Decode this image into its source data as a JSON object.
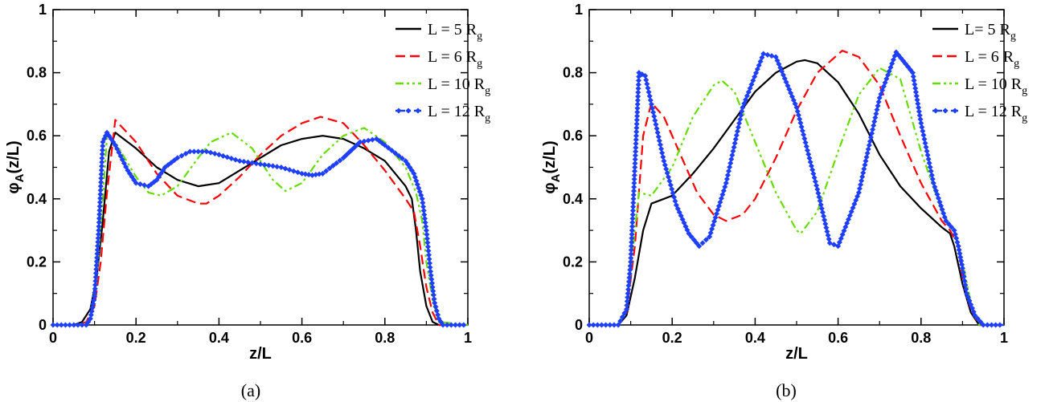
{
  "chart_data": [
    {
      "type": "line",
      "panel_label": "(a)",
      "xlabel": "z/L",
      "ylabel": "φA(z/L)",
      "ylabel_parts": {
        "symbol": "φ",
        "sub": "A",
        "rest": "(z/L)"
      },
      "xlim": [
        0,
        1
      ],
      "ylim": [
        0,
        1
      ],
      "xticks": [
        0,
        0.2,
        0.4,
        0.6,
        0.8,
        1
      ],
      "xtick_labels": [
        "0",
        "0.2",
        "0.4",
        "0.6",
        "0.8",
        "1"
      ],
      "yticks": [
        0,
        0.2,
        0.4,
        0.6,
        0.8,
        1
      ],
      "ytick_labels": [
        "0",
        "0.2",
        "0.4",
        "0.6",
        "0.8",
        "1"
      ],
      "grid": false,
      "legend_position": "top-right",
      "series": [
        {
          "name": "L = 5 Rg",
          "label_parts": {
            "main": "L = 5 R",
            "sub": "g"
          },
          "color": "#000000",
          "style": "solid",
          "marker": "none",
          "x": [
            0,
            0.05,
            0.07,
            0.09,
            0.105,
            0.12,
            0.135,
            0.15,
            0.2,
            0.25,
            0.3,
            0.35,
            0.4,
            0.45,
            0.5,
            0.55,
            0.6,
            0.65,
            0.7,
            0.75,
            0.8,
            0.85,
            0.865,
            0.875,
            0.885,
            0.9,
            0.915,
            0.93,
            1
          ],
          "y": [
            0,
            0,
            0.01,
            0.05,
            0.15,
            0.33,
            0.55,
            0.61,
            0.56,
            0.5,
            0.46,
            0.44,
            0.45,
            0.49,
            0.53,
            0.57,
            0.59,
            0.6,
            0.59,
            0.56,
            0.52,
            0.44,
            0.4,
            0.3,
            0.17,
            0.06,
            0.01,
            0,
            0
          ]
        },
        {
          "name": "L = 6 Rg",
          "label_parts": {
            "main": "L = 6 R",
            "sub": "g"
          },
          "color": "#ff0000",
          "style": "dash",
          "marker": "none",
          "x": [
            0,
            0.06,
            0.08,
            0.1,
            0.115,
            0.13,
            0.15,
            0.2,
            0.25,
            0.3,
            0.35,
            0.37,
            0.4,
            0.45,
            0.5,
            0.55,
            0.6,
            0.645,
            0.7,
            0.75,
            0.8,
            0.85,
            0.87,
            0.885,
            0.9,
            0.915,
            0.93,
            1
          ],
          "y": [
            0,
            0,
            0.01,
            0.06,
            0.2,
            0.42,
            0.65,
            0.58,
            0.48,
            0.41,
            0.385,
            0.385,
            0.41,
            0.47,
            0.54,
            0.6,
            0.64,
            0.66,
            0.64,
            0.57,
            0.49,
            0.4,
            0.36,
            0.25,
            0.12,
            0.04,
            0,
            0
          ]
        },
        {
          "name": "L = 10 Rg",
          "label_parts": {
            "main": "L = 10 R",
            "sub": "g"
          },
          "color": "#66dd00",
          "style": "dash-dot-dot",
          "marker": "none",
          "x": [
            0,
            0.07,
            0.09,
            0.105,
            0.12,
            0.13,
            0.15,
            0.2,
            0.23,
            0.26,
            0.3,
            0.35,
            0.38,
            0.43,
            0.48,
            0.53,
            0.56,
            0.6,
            0.65,
            0.7,
            0.75,
            0.8,
            0.85,
            0.875,
            0.89,
            0.9,
            0.915,
            0.93,
            1
          ],
          "y": [
            0,
            0,
            0.02,
            0.15,
            0.4,
            0.6,
            0.58,
            0.47,
            0.42,
            0.41,
            0.44,
            0.53,
            0.58,
            0.61,
            0.56,
            0.46,
            0.425,
            0.45,
            0.54,
            0.6,
            0.625,
            0.58,
            0.5,
            0.42,
            0.33,
            0.2,
            0.08,
            0.01,
            0
          ]
        },
        {
          "name": "L = 12 Rg",
          "label_parts": {
            "main": "L = 12 R",
            "sub": "g"
          },
          "color": "#1f3fff",
          "style": "dash-dot",
          "marker": "diamond",
          "x": [
            0,
            0.08,
            0.09,
            0.1,
            0.11,
            0.12,
            0.13,
            0.15,
            0.18,
            0.2,
            0.23,
            0.25,
            0.27,
            0.3,
            0.33,
            0.37,
            0.4,
            0.45,
            0.5,
            0.55,
            0.6,
            0.625,
            0.65,
            0.7,
            0.74,
            0.78,
            0.8,
            0.85,
            0.87,
            0.89,
            0.9,
            0.91,
            0.92,
            0.93,
            0.94,
            1
          ],
          "y": [
            0,
            0,
            0.02,
            0.09,
            0.3,
            0.58,
            0.61,
            0.57,
            0.49,
            0.45,
            0.44,
            0.46,
            0.5,
            0.53,
            0.55,
            0.55,
            0.54,
            0.52,
            0.51,
            0.5,
            0.48,
            0.475,
            0.48,
            0.53,
            0.58,
            0.59,
            0.57,
            0.52,
            0.48,
            0.4,
            0.3,
            0.17,
            0.07,
            0.02,
            0,
            0
          ]
        }
      ]
    },
    {
      "type": "line",
      "panel_label": "(b)",
      "xlabel": "z/L",
      "ylabel": "φA(z/L)",
      "ylabel_parts": {
        "symbol": "φ",
        "sub": "A",
        "rest": "(z/L)"
      },
      "xlim": [
        0,
        1
      ],
      "ylim": [
        0,
        1
      ],
      "xticks": [
        0,
        0.2,
        0.4,
        0.6,
        0.8,
        1
      ],
      "xtick_labels": [
        "0",
        "0.2",
        "0.4",
        "0.6",
        "0.8",
        "1"
      ],
      "yticks": [
        0,
        0.2,
        0.4,
        0.6,
        0.8,
        1
      ],
      "ytick_labels": [
        "0",
        "0.2",
        "0.4",
        "0.6",
        "0.8",
        "1"
      ],
      "grid": false,
      "legend_position": "top-right",
      "series": [
        {
          "name": "L= 5 Rg",
          "label_parts": {
            "main": "L= 5 R",
            "sub": "g"
          },
          "color": "#000000",
          "style": "solid",
          "marker": "none",
          "x": [
            0,
            0.07,
            0.09,
            0.11,
            0.13,
            0.15,
            0.17,
            0.2,
            0.25,
            0.3,
            0.35,
            0.4,
            0.45,
            0.5,
            0.52,
            0.55,
            0.6,
            0.65,
            0.7,
            0.75,
            0.8,
            0.85,
            0.87,
            0.88,
            0.9,
            0.92,
            0.94,
            1
          ],
          "y": [
            0,
            0,
            0.03,
            0.15,
            0.3,
            0.385,
            0.395,
            0.41,
            0.48,
            0.56,
            0.65,
            0.74,
            0.8,
            0.835,
            0.84,
            0.83,
            0.77,
            0.67,
            0.54,
            0.44,
            0.37,
            0.31,
            0.29,
            0.25,
            0.13,
            0.04,
            0,
            0
          ]
        },
        {
          "name": "L = 6 Rg",
          "label_parts": {
            "main": "L = 6 R",
            "sub": "g"
          },
          "color": "#ff0000",
          "style": "dash",
          "marker": "none",
          "x": [
            0,
            0.07,
            0.09,
            0.11,
            0.13,
            0.15,
            0.18,
            0.22,
            0.26,
            0.3,
            0.33,
            0.37,
            0.4,
            0.45,
            0.5,
            0.55,
            0.61,
            0.65,
            0.7,
            0.75,
            0.8,
            0.85,
            0.87,
            0.89,
            0.9,
            0.92,
            0.94,
            1
          ],
          "y": [
            0,
            0,
            0.04,
            0.25,
            0.6,
            0.705,
            0.66,
            0.54,
            0.42,
            0.35,
            0.33,
            0.35,
            0.4,
            0.53,
            0.68,
            0.8,
            0.87,
            0.85,
            0.76,
            0.6,
            0.45,
            0.33,
            0.3,
            0.25,
            0.15,
            0.05,
            0,
            0
          ]
        },
        {
          "name": "L = 10 Rg",
          "label_parts": {
            "main": "L = 10 R",
            "sub": "g"
          },
          "color": "#66dd00",
          "style": "dash-dot-dot",
          "marker": "none",
          "x": [
            0,
            0.07,
            0.09,
            0.11,
            0.12,
            0.15,
            0.2,
            0.25,
            0.3,
            0.32,
            0.35,
            0.4,
            0.45,
            0.5,
            0.51,
            0.55,
            0.6,
            0.65,
            0.7,
            0.75,
            0.8,
            0.85,
            0.88,
            0.9,
            0.92,
            0.94,
            1
          ],
          "y": [
            0,
            0,
            0.05,
            0.3,
            0.42,
            0.41,
            0.5,
            0.66,
            0.76,
            0.775,
            0.74,
            0.58,
            0.42,
            0.3,
            0.29,
            0.36,
            0.55,
            0.73,
            0.815,
            0.78,
            0.55,
            0.36,
            0.3,
            0.2,
            0.07,
            0,
            0
          ]
        },
        {
          "name": "L = 12 Rg",
          "label_parts": {
            "main": "L = 12 R",
            "sub": "g"
          },
          "color": "#1f3fff",
          "style": "dash-dot",
          "marker": "diamond",
          "x": [
            0,
            0.07,
            0.09,
            0.1,
            0.11,
            0.12,
            0.135,
            0.15,
            0.18,
            0.21,
            0.24,
            0.265,
            0.29,
            0.33,
            0.37,
            0.42,
            0.45,
            0.5,
            0.55,
            0.58,
            0.6,
            0.65,
            0.7,
            0.74,
            0.78,
            0.8,
            0.83,
            0.86,
            0.88,
            0.89,
            0.9,
            0.91,
            0.93,
            0.95,
            1
          ],
          "y": [
            0,
            0,
            0.05,
            0.2,
            0.5,
            0.8,
            0.79,
            0.7,
            0.52,
            0.38,
            0.29,
            0.25,
            0.28,
            0.45,
            0.69,
            0.86,
            0.85,
            0.69,
            0.43,
            0.26,
            0.25,
            0.42,
            0.72,
            0.865,
            0.8,
            0.64,
            0.45,
            0.33,
            0.3,
            0.25,
            0.18,
            0.1,
            0.03,
            0,
            0
          ]
        }
      ]
    }
  ]
}
